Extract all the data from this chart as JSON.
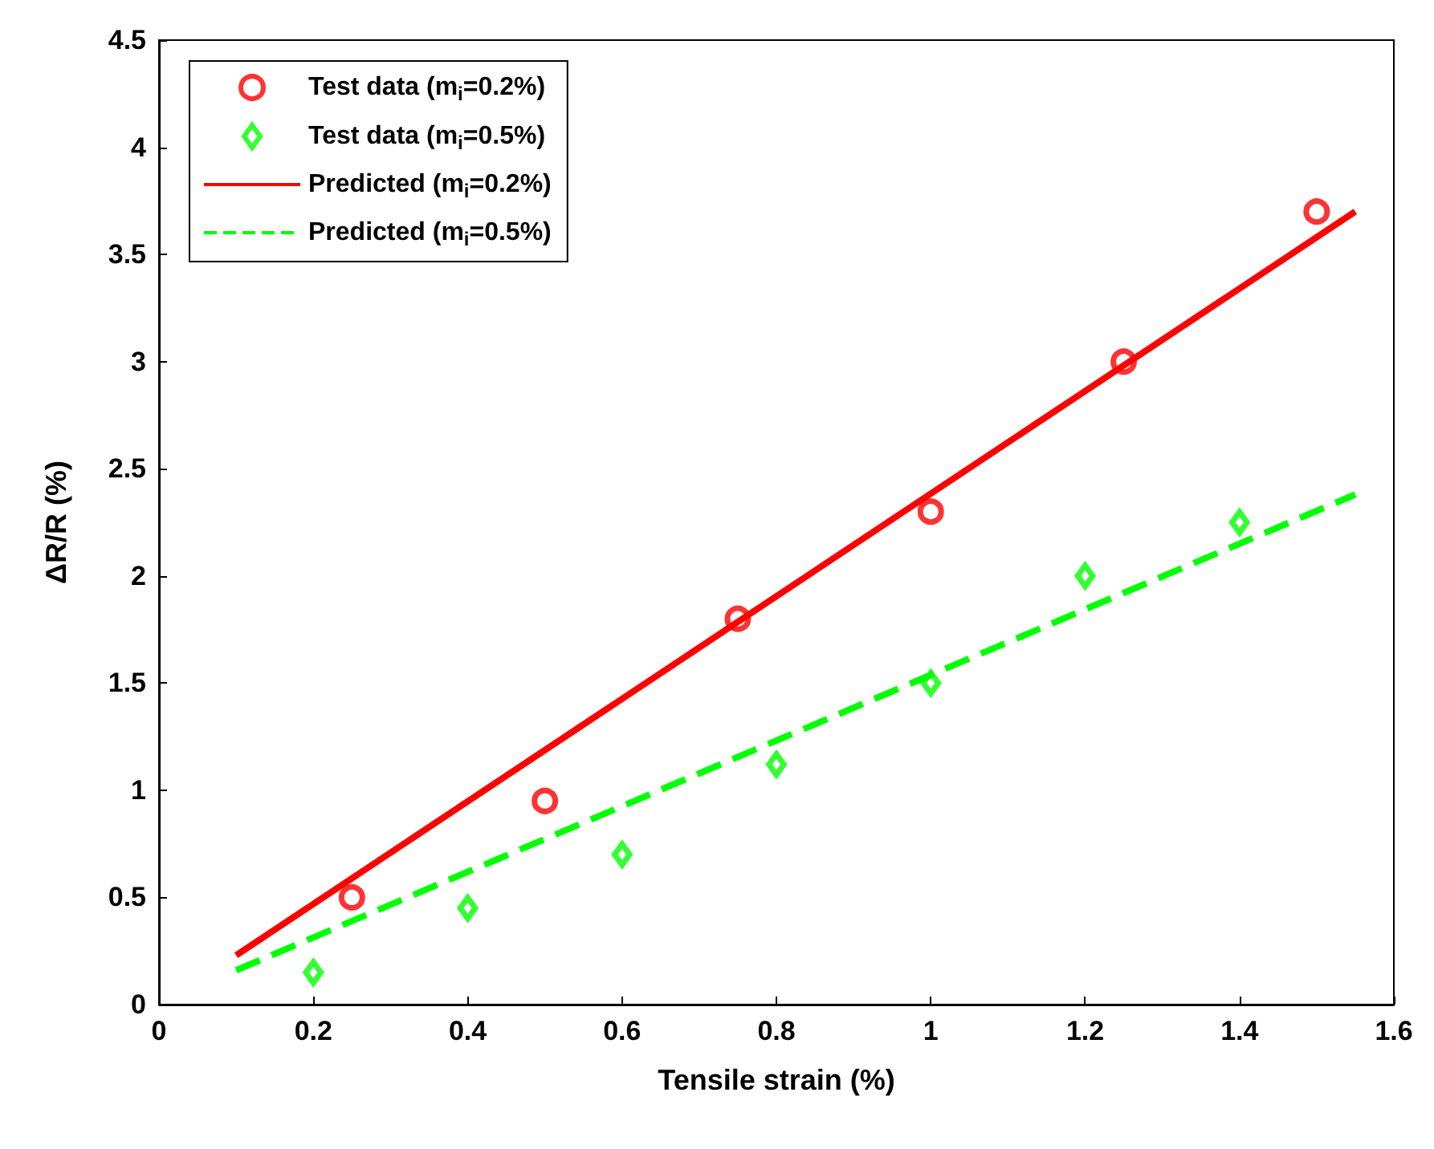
{
  "chart_data": {
    "type": "scatter",
    "xlabel": "Tensile strain (%)",
    "ylabel": "ΔR/R (%)",
    "xlim": [
      0,
      1.6
    ],
    "xticks": [
      0,
      0.2,
      0.4,
      0.6,
      0.8,
      1,
      1.2,
      1.4,
      1.6
    ],
    "ylim": [
      0,
      4.5
    ],
    "yticks": [
      0,
      0.5,
      1,
      1.5,
      2,
      2.5,
      3,
      3.5,
      4,
      4.5
    ],
    "grid": false,
    "legend": "top left",
    "series": [
      {
        "name": "Test data (m$_{i}$=0.2%)",
        "type": "scatter",
        "marker": "circle",
        "color": "#ff0000",
        "x": [
          0.25,
          0.5,
          0.75,
          1,
          1.25,
          1.5
        ],
        "values": [
          0.5,
          0.95,
          1.8,
          2.3,
          3.0,
          3.7
        ]
      },
      {
        "name": "Test data (m$_{i}$=0.5%)",
        "type": "scatter",
        "marker": "diamond",
        "color": "#00ff00",
        "x": [
          0.2,
          0.4,
          0.6,
          0.8,
          1,
          1.2,
          1.4
        ],
        "values": [
          0.15,
          0.45,
          0.7,
          1.12,
          1.5,
          2.0,
          2.25
        ]
      },
      {
        "name": "Predicted (m$_{i}$=0.2%)",
        "type": "line",
        "line_style": "solid",
        "marker": "none",
        "color": "#ff0000",
        "x": [
          0.1,
          1.55
        ],
        "values": [
          0.23,
          3.7
        ]
      },
      {
        "name": "Predicted (m$_{i}$=0.5%)",
        "type": "line",
        "line_style": "dashed",
        "marker": "none",
        "color": "#00ff00",
        "x": [
          0.1,
          1.55
        ],
        "values": [
          0.16,
          2.38
        ]
      }
    ]
  }
}
